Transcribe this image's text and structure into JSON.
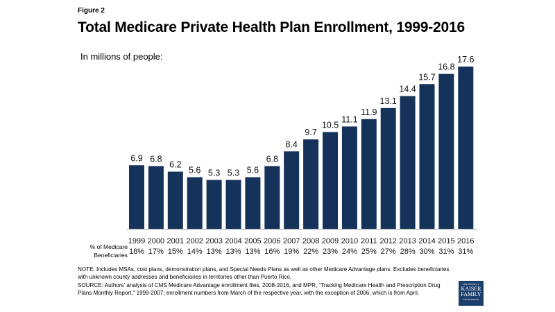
{
  "figure_label": "Figure 2",
  "title": "Total Medicare Private Health Plan Enrollment, 1999-2016",
  "subtitle": "In millions of people:",
  "chart_data": {
    "type": "bar",
    "title": "Total Medicare Private Health Plan Enrollment, 1999-2016",
    "subtitle": "In millions of people:",
    "xlabel": "",
    "ylabel": "In millions of people",
    "categories": [
      "1999",
      "2000",
      "2001",
      "2002",
      "2003",
      "2004",
      "2005",
      "2006",
      "2007",
      "2008",
      "2009",
      "2010",
      "2011",
      "2012",
      "2013",
      "2014",
      "2015",
      "2016"
    ],
    "values": [
      6.9,
      6.8,
      6.2,
      5.6,
      5.3,
      5.3,
      5.6,
      6.8,
      8.4,
      9.7,
      10.5,
      11.1,
      11.9,
      13.1,
      14.4,
      15.7,
      16.8,
      17.6
    ],
    "value_labels": [
      "6.9",
      "6.8",
      "6.2",
      "5.6",
      "5.3",
      "5.3",
      "5.6",
      "6.8",
      "8.4",
      "9.7",
      "10.5",
      "11.1",
      "11.9",
      "13.1",
      "14.4",
      "15.7",
      "16.8",
      "17.6"
    ],
    "secondary_row": {
      "label": "% of Medicare Beneficiaries",
      "values": [
        "18%",
        "17%",
        "15%",
        "14%",
        "13%",
        "13%",
        "13%",
        "16%",
        "19%",
        "22%",
        "23%",
        "24%",
        "25%",
        "27%",
        "28%",
        "30%",
        "31%",
        "31%"
      ]
    },
    "ylim": [
      0,
      17.6
    ],
    "grid": false,
    "legend": "none",
    "bar_color": "#15325a"
  },
  "pct_row_label_line1": "% of Medicare",
  "pct_row_label_line2": "Beneficiaries",
  "note": "NOTE:  Includes MSAs, cost plans, demonstration plans, and Special Needs Plans as well as other Medicare Advantage plans.  Excludes beneficiaries with unknown county addresses and beneficiaries in territories other than Puerto Rico.",
  "source": "SOURCE:  Authors’ analysis of CMS Medicare Advantage enrollment files, 2008-2016, and MPR, “Tracking Medicare Health and Prescription Drug Plans Monthly Report,” 1999-2007; enrollment numbers from March of the respective year, with the exception of 2006, which is from April.",
  "logo": {
    "line1": "THE HENRY J.",
    "line2": "KAISER",
    "line3": "FAMILY",
    "line4": "FOUNDATION"
  }
}
